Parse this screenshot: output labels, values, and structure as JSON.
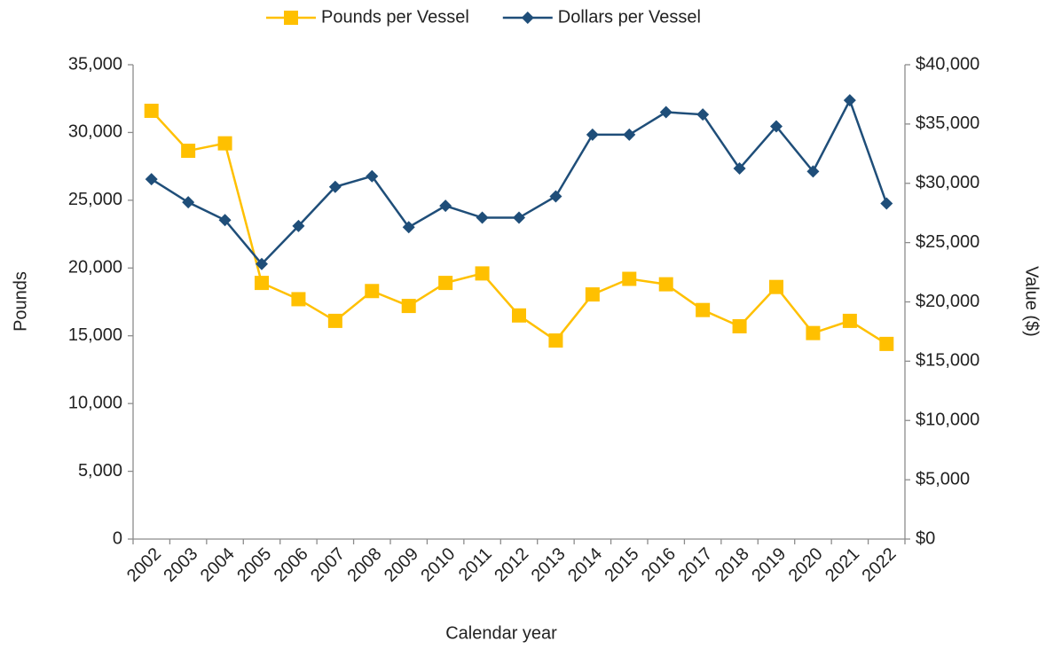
{
  "chart_data": {
    "type": "line",
    "x_label": "Calendar year",
    "y_label": "Pounds",
    "y2_label": "Value ($)",
    "categories": [
      "2002",
      "2003",
      "2004",
      "2005",
      "2006",
      "2007",
      "2008",
      "2009",
      "2010",
      "2011",
      "2012",
      "2013",
      "2014",
      "2015",
      "2016",
      "2017",
      "2018",
      "2019",
      "2020",
      "2021",
      "2022"
    ],
    "series": [
      {
        "name": "Pounds per Vessel",
        "color": "#FFC000",
        "marker": "square",
        "axis": "y",
        "values": [
          31600,
          28650,
          29200,
          18900,
          17700,
          16100,
          18300,
          17200,
          18900,
          19600,
          16500,
          14650,
          18050,
          19200,
          18800,
          16900,
          15700,
          18600,
          15200,
          16100,
          14400
        ]
      },
      {
        "name": "Dollars per Vessel",
        "color": "#1F4E79",
        "marker": "diamond",
        "axis": "y2",
        "values": [
          30350,
          28400,
          26900,
          23200,
          26400,
          29700,
          30600,
          26300,
          28100,
          27100,
          27100,
          28900,
          34100,
          34100,
          36000,
          35800,
          31250,
          34800,
          31000,
          37000,
          28300
        ]
      }
    ],
    "ylim": [
      0,
      35000
    ],
    "yticks": [
      0,
      {
        "value": 5000,
        "label": "5,000"
      },
      {
        "value": 10000,
        "label": "10,000"
      },
      {
        "value": 15000,
        "label": "15,000"
      },
      {
        "value": 20000,
        "label": "20,000"
      },
      {
        "value": 25000,
        "label": "25,000"
      },
      {
        "value": 30000,
        "label": "30,000"
      },
      {
        "value": 35000,
        "label": "35,000"
      }
    ],
    "y2lim": [
      0,
      40000
    ],
    "y2ticks": [
      {
        "value": 0,
        "label": "$0"
      },
      {
        "value": 5000,
        "label": "$5,000"
      },
      {
        "value": 10000,
        "label": "$10,000"
      },
      {
        "value": 15000,
        "label": "$15,000"
      },
      {
        "value": 20000,
        "label": "$20,000"
      },
      {
        "value": 25000,
        "label": "$25,000"
      },
      {
        "value": 30000,
        "label": "$30,000"
      },
      {
        "value": 35000,
        "label": "$35,000"
      },
      {
        "value": 40000,
        "label": "$40,000"
      }
    ],
    "grid": false,
    "legend": "top"
  }
}
